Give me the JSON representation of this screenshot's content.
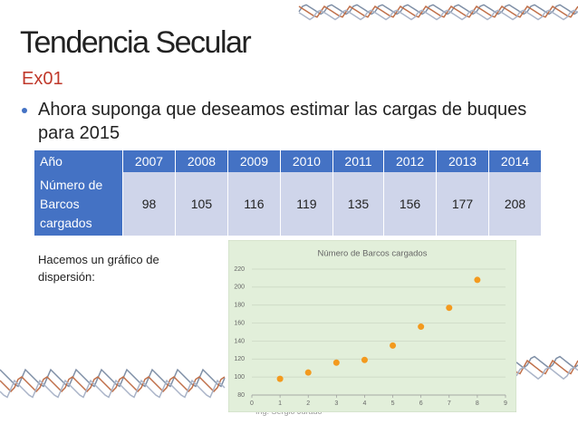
{
  "title": "Tendencia Secular",
  "subtitle": "Ex01",
  "bullet": "Ahora suponga que deseamos estimar las cargas de buques para 2015",
  "table": {
    "header": [
      "Año",
      "2007",
      "2008",
      "2009",
      "2010",
      "2011",
      "2012",
      "2013",
      "2014"
    ],
    "rows": [
      [
        "Número de Barcos cargados",
        98,
        105,
        116,
        119,
        135,
        156,
        177,
        208
      ]
    ]
  },
  "note": "Hacemos un gráfico de dispersión:",
  "footer": "Ing. Sergio Jurado",
  "chart_data": {
    "type": "scatter",
    "title": "Número de Barcos cargados",
    "x": [
      1,
      2,
      3,
      4,
      5,
      6,
      7,
      8
    ],
    "values": [
      98,
      105,
      116,
      119,
      135,
      156,
      177,
      208
    ],
    "color": "#f39a1e",
    "xlim": [
      0,
      9
    ],
    "xticks": [
      0,
      1,
      2,
      3,
      4,
      5,
      6,
      7,
      8,
      9
    ],
    "ylim": [
      80,
      220
    ],
    "yticks": [
      80,
      100,
      120,
      140,
      160,
      180,
      200,
      220
    ],
    "grid": true
  }
}
